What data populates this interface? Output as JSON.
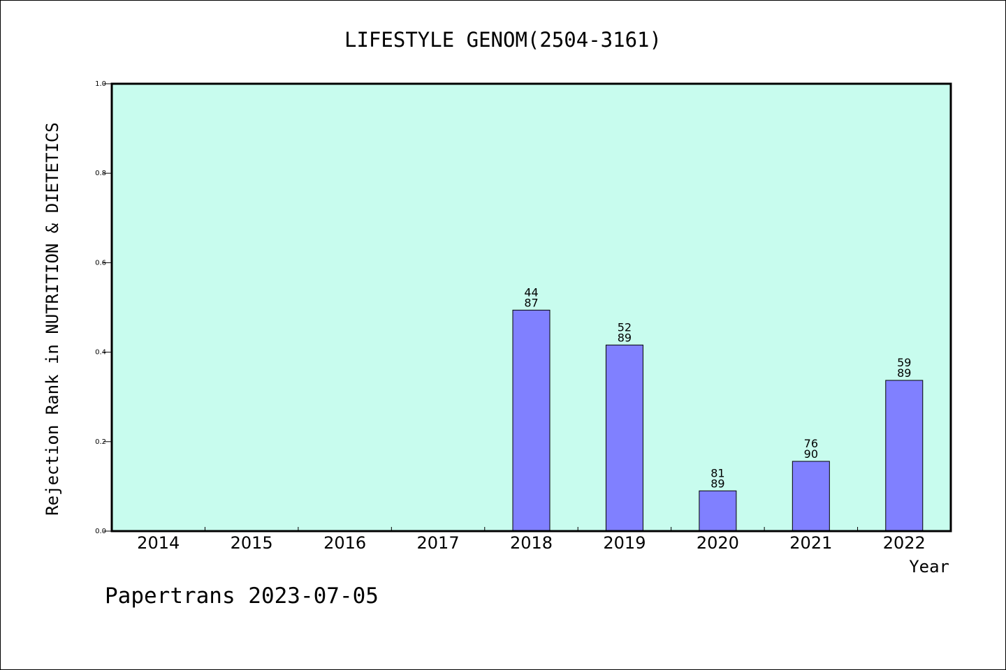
{
  "chart_data": {
    "type": "bar",
    "title": "LIFESTYLE GENOM(2504-3161)",
    "xlabel": "Year",
    "ylabel": "Rejection Rank in NUTRITION & DIETETICS",
    "footer": "Papertrans 2023-07-05",
    "ylim": [
      0,
      1.0
    ],
    "yticks": [
      "0.0",
      "0.2",
      "0.4",
      "0.6",
      "0.8",
      "1.0"
    ],
    "categories": [
      "2014",
      "2015",
      "2016",
      "2017",
      "2018",
      "2019",
      "2020",
      "2021",
      "2022"
    ],
    "values": [
      null,
      null,
      null,
      null,
      0.494,
      0.416,
      0.09,
      0.156,
      0.337
    ],
    "labels": [
      null,
      null,
      null,
      null,
      [
        "44",
        "87"
      ],
      [
        "52",
        "89"
      ],
      [
        "81",
        "89"
      ],
      [
        "76",
        "90"
      ],
      [
        "59",
        "89"
      ]
    ],
    "grid": false,
    "colors": {
      "plot_bg": "#c8fcee",
      "bar_fill": "#8080ff",
      "bar_stroke": "#000000"
    }
  }
}
